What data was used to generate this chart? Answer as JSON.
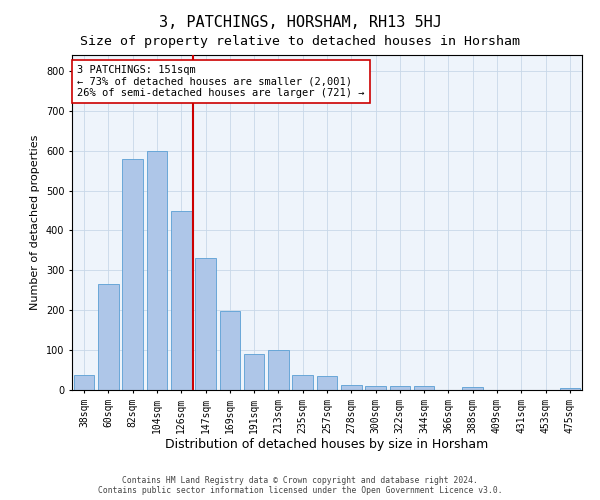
{
  "title": "3, PATCHINGS, HORSHAM, RH13 5HJ",
  "subtitle": "Size of property relative to detached houses in Horsham",
  "xlabel": "Distribution of detached houses by size in Horsham",
  "ylabel": "Number of detached properties",
  "footer_line1": "Contains HM Land Registry data © Crown copyright and database right 2024.",
  "footer_line2": "Contains public sector information licensed under the Open Government Licence v3.0.",
  "categories": [
    "38sqm",
    "60sqm",
    "82sqm",
    "104sqm",
    "126sqm",
    "147sqm",
    "169sqm",
    "191sqm",
    "213sqm",
    "235sqm",
    "257sqm",
    "278sqm",
    "300sqm",
    "322sqm",
    "344sqm",
    "366sqm",
    "388sqm",
    "409sqm",
    "431sqm",
    "453sqm",
    "475sqm"
  ],
  "values": [
    38,
    265,
    580,
    600,
    450,
    330,
    197,
    90,
    100,
    38,
    35,
    13,
    10,
    10,
    10,
    0,
    8,
    0,
    0,
    0,
    5
  ],
  "bar_color": "#aec6e8",
  "bar_edge_color": "#5a9fd4",
  "ref_line_index": 5,
  "ref_line_color": "#cc0000",
  "annotation_text": "3 PATCHINGS: 151sqm\n← 73% of detached houses are smaller (2,001)\n26% of semi-detached houses are larger (721) →",
  "annotation_box_color": "#ffffff",
  "annotation_box_edge": "#cc0000",
  "ylim": [
    0,
    840
  ],
  "yticks": [
    0,
    100,
    200,
    300,
    400,
    500,
    600,
    700,
    800
  ],
  "background_color": "#ffffff",
  "plot_bg_color": "#eef4fb",
  "grid_color": "#c8d8e8",
  "title_fontsize": 11,
  "subtitle_fontsize": 9.5,
  "xlabel_fontsize": 9,
  "ylabel_fontsize": 8,
  "tick_fontsize": 7,
  "annotation_fontsize": 7.5,
  "footer_fontsize": 5.8
}
